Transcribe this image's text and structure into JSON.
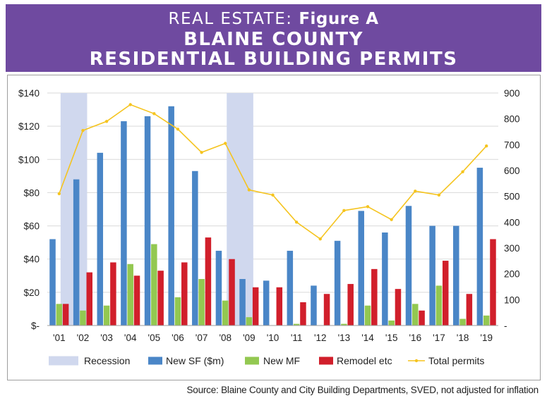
{
  "header": {
    "kicker": "REAL ESTATE:",
    "figure": "Figure A",
    "title_line1": "BLAINE COUNTY",
    "title_line2": "RESIDENTIAL BUILDING PERMITS"
  },
  "source": "Source: Blaine County and City Building Departments, SVED, not adjusted for inflation",
  "colors": {
    "banner": "#6f4aa0",
    "recession": "#d0d8ee",
    "new_sf": "#4a86c7",
    "new_mf": "#93c851",
    "remodel": "#d11f2b",
    "total": "#f5c41f"
  },
  "chart_data": {
    "type": "bar",
    "categories": [
      "'01",
      "'02",
      "'03",
      "'04",
      "'05",
      "'06",
      "'07",
      "'08",
      "'09",
      "'10",
      "'11",
      "'12",
      "'13",
      "'14",
      "'15",
      "'16",
      "'17",
      "'18",
      "'19"
    ],
    "series": [
      {
        "name": "New SF ($m)",
        "axis": "left",
        "values": [
          52,
          88,
          104,
          123,
          126,
          132,
          93,
          45,
          28,
          27,
          45,
          24,
          51,
          69,
          56,
          72,
          60,
          60,
          95
        ]
      },
      {
        "name": "New MF",
        "axis": "left",
        "values": [
          13,
          9,
          12,
          37,
          49,
          17,
          28,
          15,
          5,
          0,
          1,
          0,
          1,
          12,
          3,
          13,
          24,
          4,
          6
        ]
      },
      {
        "name": "Remodel etc",
        "axis": "left",
        "values": [
          13,
          32,
          38,
          30,
          33,
          38,
          53,
          40,
          23,
          23,
          14,
          19,
          25,
          34,
          22,
          9,
          39,
          19,
          52
        ]
      },
      {
        "name": "Total permits",
        "type": "line",
        "axis": "right",
        "values": [
          510,
          755,
          790,
          855,
          820,
          760,
          670,
          705,
          525,
          505,
          400,
          335,
          445,
          460,
          410,
          520,
          505,
          595,
          695
        ]
      }
    ],
    "recession_periods": [
      [
        "'01",
        "'02"
      ],
      [
        "'08",
        "'09"
      ]
    ],
    "legend": [
      "Recession",
      "New SF ($m)",
      "New MF",
      "Remodel etc",
      "Total permits"
    ],
    "legend_position": "bottom",
    "ylim_left": [
      0,
      140
    ],
    "ylim_right": [
      0,
      900
    ],
    "left_ticks": [
      "$-",
      "$20",
      "$40",
      "$60",
      "$80",
      "$100",
      "$120",
      "$140"
    ],
    "right_ticks": [
      "-",
      "100",
      "200",
      "300",
      "400",
      "500",
      "600",
      "700",
      "800",
      "900"
    ],
    "grid": true
  }
}
